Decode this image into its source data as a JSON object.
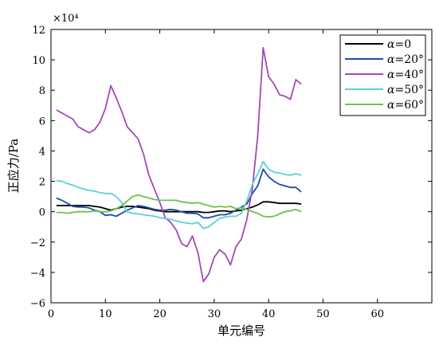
{
  "chart_data": {
    "type": "line",
    "title": "",
    "xlabel": "单元编号",
    "ylabel": "正应力/Pa",
    "scale_label": "×10⁴",
    "xlim": [
      0,
      70
    ],
    "ylim": [
      -6,
      12
    ],
    "xticks": [
      0,
      10,
      20,
      30,
      40,
      50,
      60
    ],
    "yticks": [
      -6,
      -4,
      -2,
      0,
      2,
      4,
      6,
      8,
      10,
      12
    ],
    "xtick_labels": [
      "0",
      "10",
      "20",
      "30",
      "40",
      "50",
      "60"
    ],
    "ytick_labels": [
      "−6",
      "−4",
      "−2",
      "0",
      "2",
      "4",
      "6",
      "8",
      "10",
      "12"
    ],
    "grid": false,
    "legend_position": "top-right",
    "series": [
      {
        "name": "α=0",
        "legend_symbol": "α",
        "legend_value": "=0",
        "color": "#000000",
        "x": [
          1,
          2,
          3,
          4,
          5,
          6,
          7,
          8,
          9,
          10,
          11,
          12,
          13,
          14,
          15,
          16,
          17,
          18,
          19,
          20,
          21,
          22,
          23,
          24,
          25,
          26,
          27,
          28,
          29,
          30,
          31,
          32,
          33,
          34,
          35,
          36,
          37,
          38,
          39,
          40,
          41,
          42,
          43,
          44,
          45,
          46
        ],
        "y": [
          0.4,
          0.4,
          0.4,
          0.4,
          0.4,
          0.4,
          0.4,
          0.35,
          0.3,
          0.2,
          0.1,
          0.2,
          0.3,
          0.35,
          0.35,
          0.3,
          0.25,
          0.2,
          0.1,
          0.05,
          0.0,
          0.0,
          0.0,
          0.0,
          0.0,
          0.0,
          0.0,
          -0.05,
          -0.05,
          0.0,
          0.05,
          0.05,
          0.0,
          0.05,
          0.1,
          0.2,
          0.3,
          0.45,
          0.65,
          0.65,
          0.6,
          0.55,
          0.55,
          0.55,
          0.55,
          0.5
        ]
      },
      {
        "name": "α=20°",
        "legend_symbol": "α",
        "legend_value": "=20°",
        "color": "#1f4e9e",
        "x": [
          1,
          2,
          3,
          4,
          5,
          6,
          7,
          8,
          9,
          10,
          11,
          12,
          13,
          14,
          15,
          16,
          17,
          18,
          19,
          20,
          21,
          22,
          23,
          24,
          25,
          26,
          27,
          28,
          29,
          30,
          31,
          32,
          33,
          34,
          35,
          36,
          37,
          38,
          39,
          40,
          41,
          42,
          43,
          44,
          45,
          46
        ],
        "y": [
          0.9,
          0.75,
          0.55,
          0.35,
          0.3,
          0.3,
          0.25,
          0.1,
          0.0,
          -0.25,
          -0.2,
          -0.3,
          -0.1,
          0.1,
          0.25,
          0.4,
          0.35,
          0.25,
          0.15,
          0.1,
          0.1,
          0.15,
          0.1,
          0.0,
          -0.1,
          -0.1,
          -0.15,
          -0.4,
          -0.4,
          -0.3,
          -0.2,
          -0.2,
          -0.1,
          0.1,
          0.3,
          0.5,
          1.2,
          1.7,
          2.8,
          2.3,
          2.0,
          1.8,
          1.7,
          1.6,
          1.6,
          1.3
        ]
      },
      {
        "name": "α=40°",
        "legend_symbol": "α",
        "legend_value": "=40°",
        "color": "#a24ab4",
        "x": [
          1,
          2,
          3,
          4,
          5,
          6,
          7,
          8,
          9,
          10,
          11,
          12,
          13,
          14,
          15,
          16,
          17,
          18,
          19,
          20,
          21,
          22,
          23,
          24,
          25,
          26,
          27,
          28,
          29,
          30,
          31,
          32,
          33,
          34,
          35,
          36,
          37,
          38,
          39,
          40,
          41,
          42,
          43,
          44,
          45,
          46
        ],
        "y": [
          6.7,
          6.5,
          6.3,
          6.1,
          5.6,
          5.4,
          5.2,
          5.4,
          5.9,
          6.8,
          8.3,
          7.5,
          6.6,
          5.6,
          5.2,
          4.8,
          3.8,
          2.4,
          1.5,
          0.6,
          -0.4,
          -0.7,
          -1.2,
          -2.1,
          -2.3,
          -1.6,
          -2.7,
          -4.6,
          -4.1,
          -3.0,
          -2.5,
          -2.8,
          -3.5,
          -2.3,
          -1.8,
          -0.5,
          1.5,
          5.0,
          10.8,
          8.9,
          8.4,
          7.7,
          7.6,
          7.4,
          8.7,
          8.4
        ]
      },
      {
        "name": "α=50°",
        "legend_symbol": "α",
        "legend_value": "=50°",
        "color": "#5ccfdb",
        "x": [
          1,
          2,
          3,
          4,
          5,
          6,
          7,
          8,
          9,
          10,
          11,
          12,
          13,
          14,
          15,
          16,
          17,
          18,
          19,
          20,
          21,
          22,
          23,
          24,
          25,
          26,
          27,
          28,
          29,
          30,
          31,
          32,
          33,
          34,
          35,
          36,
          37,
          38,
          39,
          40,
          41,
          42,
          43,
          44,
          45,
          46
        ],
        "y": [
          2.05,
          2.0,
          1.85,
          1.75,
          1.6,
          1.5,
          1.4,
          1.35,
          1.25,
          1.2,
          1.2,
          1.0,
          0.6,
          0.0,
          -0.1,
          -0.15,
          -0.2,
          -0.25,
          -0.3,
          -0.4,
          -0.45,
          -0.5,
          -0.6,
          -0.7,
          -0.75,
          -0.8,
          -0.7,
          -1.1,
          -1.0,
          -0.7,
          -0.45,
          -0.35,
          -0.3,
          -0.3,
          -0.1,
          0.7,
          1.8,
          2.5,
          3.3,
          2.8,
          2.6,
          2.55,
          2.45,
          2.4,
          2.5,
          2.4
        ]
      },
      {
        "name": "α=60°",
        "legend_symbol": "α",
        "legend_value": "=60°",
        "color": "#6cc24a",
        "x": [
          1,
          2,
          3,
          4,
          5,
          6,
          7,
          8,
          9,
          10,
          11,
          12,
          13,
          14,
          15,
          16,
          17,
          18,
          19,
          20,
          21,
          22,
          23,
          24,
          25,
          26,
          27,
          28,
          29,
          30,
          31,
          32,
          33,
          34,
          35,
          36,
          37,
          38,
          39,
          40,
          41,
          42,
          43,
          44,
          45,
          46
        ],
        "y": [
          -0.05,
          -0.05,
          -0.1,
          -0.05,
          0.0,
          0.0,
          0.0,
          0.05,
          0.0,
          0.0,
          0.05,
          0.2,
          0.4,
          0.7,
          1.0,
          1.1,
          1.0,
          0.9,
          0.8,
          0.75,
          0.75,
          0.75,
          0.75,
          0.65,
          0.6,
          0.55,
          0.6,
          0.5,
          0.4,
          0.3,
          0.35,
          0.3,
          0.35,
          0.2,
          0.25,
          0.15,
          0.0,
          -0.1,
          -0.3,
          -0.35,
          -0.3,
          -0.15,
          0.0,
          0.05,
          0.15,
          0.0
        ]
      }
    ]
  }
}
